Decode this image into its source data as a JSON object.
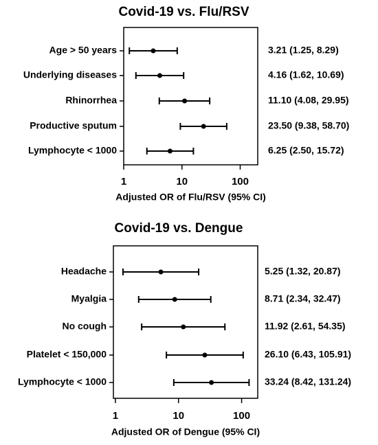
{
  "chart_data": [
    {
      "type": "forest",
      "title": "Covid-19 vs. Flu/RSV",
      "x_label": "Adjusted OR of Flu/RSV (95% CI)",
      "categories": [
        "Age > 50 years",
        "Underlying diseases",
        "Rhinorrhea",
        "Productive sputum",
        "Lymphocyte < 1000"
      ],
      "values": [
        3.21,
        4.16,
        11.1,
        23.5,
        6.25
      ],
      "ci_lower": [
        1.25,
        1.62,
        4.08,
        9.38,
        2.5
      ],
      "ci_upper": [
        8.29,
        10.69,
        29.95,
        58.7,
        15.72
      ],
      "value_labels": [
        "3.21 (1.25, 8.29)",
        "4.16 (1.62, 10.69)",
        "11.10 (4.08, 29.95)",
        "23.50 (9.38, 58.70)",
        "6.25 (2.50, 15.72)"
      ],
      "xlim": [
        1,
        200
      ],
      "xticks": [
        1,
        10,
        100
      ],
      "log_x": true,
      "color": "#000000"
    },
    {
      "type": "forest",
      "title": "Covid-19 vs. Dengue",
      "x_label": "Adjusted OR of Dengue (95% CI)",
      "categories": [
        "Headache",
        "Myalgia",
        "No cough",
        "Platelet < 150,000",
        "Lymphocyte < 1000"
      ],
      "values": [
        5.25,
        8.71,
        11.92,
        26.1,
        33.24
      ],
      "ci_lower": [
        1.32,
        2.34,
        2.61,
        6.43,
        8.42
      ],
      "ci_upper": [
        20.87,
        32.47,
        54.35,
        105.91,
        131.24
      ],
      "value_labels": [
        "5.25 (1.32, 20.87)",
        "8.71 (2.34, 32.47)",
        "11.92 (2.61, 54.35)",
        "26.10 (6.43, 105.91)",
        "33.24 (8.42, 131.24)"
      ],
      "xlim": [
        0.93,
        180
      ],
      "xticks": [
        1,
        10,
        100
      ],
      "log_x": true,
      "color": "#000000"
    }
  ]
}
